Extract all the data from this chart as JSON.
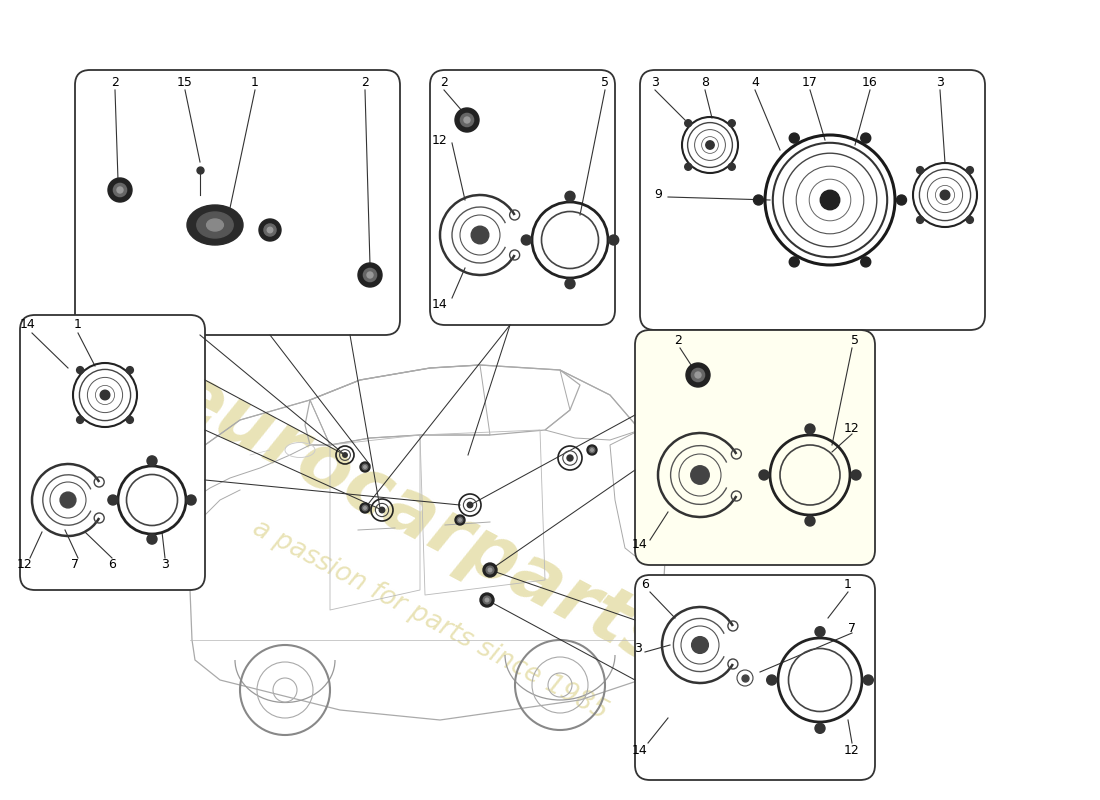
{
  "bg_color": "#ffffff",
  "watermark_color": "#d4c870",
  "watermark_alpha": 0.5,
  "box_edge_color": "#333333",
  "line_color": "#333333",
  "speaker_color": "#333333"
}
